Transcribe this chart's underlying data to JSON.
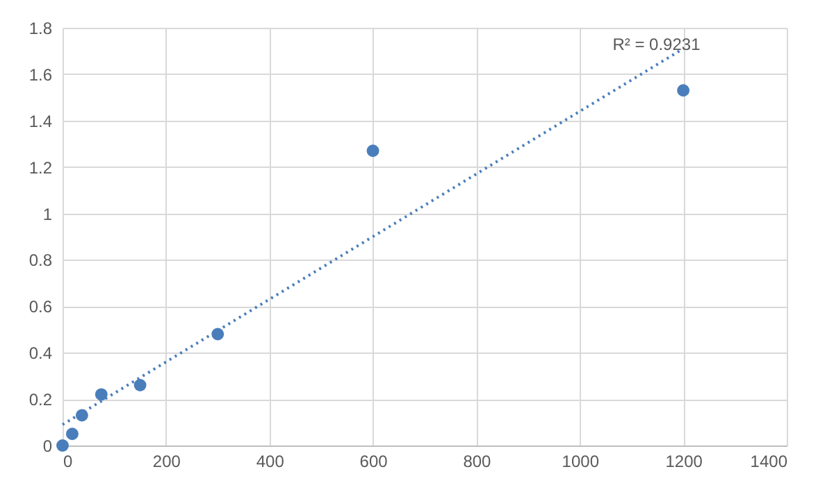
{
  "chart_data": {
    "type": "scatter",
    "xlim": [
      0,
      1400
    ],
    "xticks": [
      0,
      200,
      400,
      600,
      800,
      1000,
      1200,
      1400
    ],
    "ylim": [
      0,
      1.8
    ],
    "yticks": [
      0,
      0.2,
      0.4,
      0.6,
      0.8,
      1,
      1.2,
      1.4,
      1.6,
      1.8
    ],
    "grid": true,
    "marker": "circle",
    "series": [
      {
        "color": "#4a7ebb",
        "x": [
          0,
          18.75,
          37.5,
          75,
          150,
          300,
          600,
          1200
        ],
        "values": [
          0,
          0.05,
          0.13,
          0.22,
          0.26,
          0.48,
          1.27,
          1.53
        ]
      },
      {
        "type": "line",
        "color": "#4a7ebb",
        "line_style": "dotted",
        "marker": "none",
        "x": [
          0,
          1200
        ],
        "values": [
          0.09,
          1.71
        ]
      }
    ],
    "annotations": [
      "R² = 0.9231"
    ]
  }
}
